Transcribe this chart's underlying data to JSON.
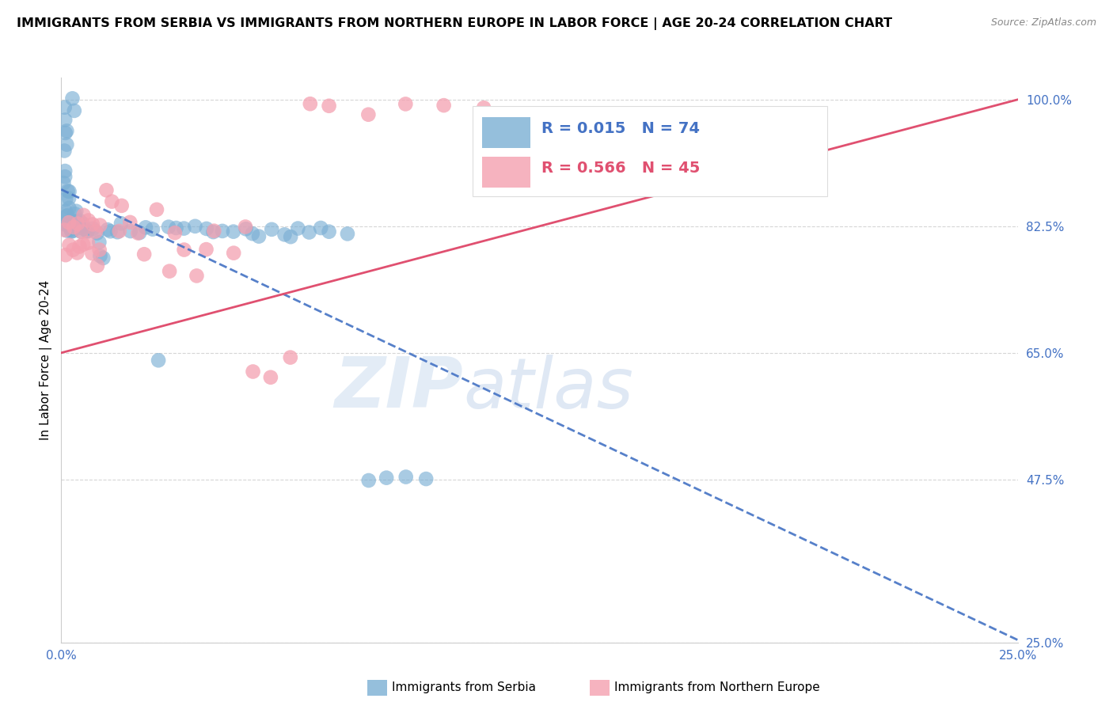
{
  "title": "IMMIGRANTS FROM SERBIA VS IMMIGRANTS FROM NORTHERN EUROPE IN LABOR FORCE | AGE 20-24 CORRELATION CHART",
  "source": "Source: ZipAtlas.com",
  "ylabel": "In Labor Force | Age 20-24",
  "xlim": [
    0.0,
    0.25
  ],
  "ylim": [
    0.25,
    1.03
  ],
  "yticks": [
    0.25,
    0.475,
    0.65,
    0.825,
    1.0
  ],
  "ytick_labels": [
    "25.0%",
    "47.5%",
    "65.0%",
    "82.5%",
    "100.0%"
  ],
  "xticks": [
    0.0,
    0.025,
    0.05,
    0.075,
    0.1,
    0.125,
    0.15,
    0.175,
    0.2,
    0.225,
    0.25
  ],
  "xtick_labels": [
    "0.0%",
    "",
    "",
    "",
    "",
    "",
    "",
    "",
    "",
    "",
    "25.0%"
  ],
  "serbia_color": "#7bafd4",
  "northern_europe_color": "#f4a0b0",
  "serbia_R": 0.015,
  "serbia_N": 74,
  "northern_europe_R": 0.566,
  "northern_europe_N": 45,
  "serbia_trendline_color": "#4472c4",
  "northern_europe_trendline_color": "#e05070",
  "background_color": "#ffffff",
  "grid_color": "#cccccc",
  "axis_color": "#4472c4",
  "watermark_zip": "ZIP",
  "watermark_atlas": "atlas",
  "title_fontsize": 11.5,
  "axis_label_fontsize": 11,
  "tick_fontsize": 11,
  "serbia_x": [
    0.0005,
    0.001,
    0.001,
    0.001,
    0.001,
    0.001,
    0.001,
    0.001,
    0.001,
    0.001,
    0.0015,
    0.0015,
    0.0015,
    0.0015,
    0.0015,
    0.002,
    0.002,
    0.002,
    0.002,
    0.002,
    0.0025,
    0.0025,
    0.003,
    0.003,
    0.003,
    0.003,
    0.004,
    0.004,
    0.004,
    0.005,
    0.005,
    0.005,
    0.005,
    0.006,
    0.006,
    0.007,
    0.007,
    0.008,
    0.009,
    0.01,
    0.01,
    0.011,
    0.012,
    0.013,
    0.015,
    0.016,
    0.018,
    0.02,
    0.022,
    0.024,
    0.025,
    0.028,
    0.03,
    0.032,
    0.035,
    0.038,
    0.04,
    0.042,
    0.045,
    0.048,
    0.05,
    0.052,
    0.055,
    0.058,
    0.06,
    0.062,
    0.065,
    0.068,
    0.07,
    0.075,
    0.08,
    0.085,
    0.09,
    0.095
  ],
  "serbia_y": [
    0.82,
    0.99,
    0.97,
    0.95,
    0.93,
    0.91,
    0.89,
    0.88,
    0.86,
    0.85,
    0.84,
    0.83,
    0.82,
    0.95,
    0.93,
    0.87,
    0.87,
    0.86,
    0.85,
    0.84,
    0.83,
    0.82,
    0.99,
    0.98,
    0.82,
    0.82,
    0.85,
    0.84,
    0.83,
    0.83,
    0.83,
    0.82,
    0.82,
    0.82,
    0.82,
    0.82,
    0.82,
    0.82,
    0.81,
    0.8,
    0.79,
    0.78,
    0.82,
    0.82,
    0.82,
    0.82,
    0.82,
    0.82,
    0.82,
    0.82,
    0.64,
    0.82,
    0.82,
    0.82,
    0.82,
    0.82,
    0.82,
    0.82,
    0.82,
    0.82,
    0.82,
    0.82,
    0.82,
    0.82,
    0.82,
    0.82,
    0.82,
    0.82,
    0.82,
    0.82,
    0.48,
    0.48,
    0.48,
    0.48
  ],
  "ne_x": [
    0.001,
    0.001,
    0.002,
    0.002,
    0.003,
    0.003,
    0.004,
    0.004,
    0.005,
    0.005,
    0.006,
    0.006,
    0.007,
    0.007,
    0.008,
    0.008,
    0.009,
    0.009,
    0.01,
    0.01,
    0.012,
    0.013,
    0.015,
    0.016,
    0.018,
    0.02,
    0.022,
    0.025,
    0.028,
    0.03,
    0.032,
    0.035,
    0.038,
    0.04,
    0.045,
    0.048,
    0.05,
    0.055,
    0.06,
    0.065,
    0.07,
    0.08,
    0.09,
    0.1,
    0.11
  ],
  "ne_y": [
    0.82,
    0.79,
    0.83,
    0.8,
    0.82,
    0.79,
    0.83,
    0.79,
    0.82,
    0.79,
    0.83,
    0.8,
    0.83,
    0.8,
    0.83,
    0.79,
    0.82,
    0.78,
    0.83,
    0.79,
    0.87,
    0.86,
    0.82,
    0.85,
    0.82,
    0.82,
    0.79,
    0.85,
    0.76,
    0.82,
    0.79,
    0.76,
    0.79,
    0.82,
    0.79,
    0.82,
    0.63,
    0.62,
    0.64,
    0.99,
    0.99,
    0.99,
    0.99,
    0.99,
    0.99
  ]
}
